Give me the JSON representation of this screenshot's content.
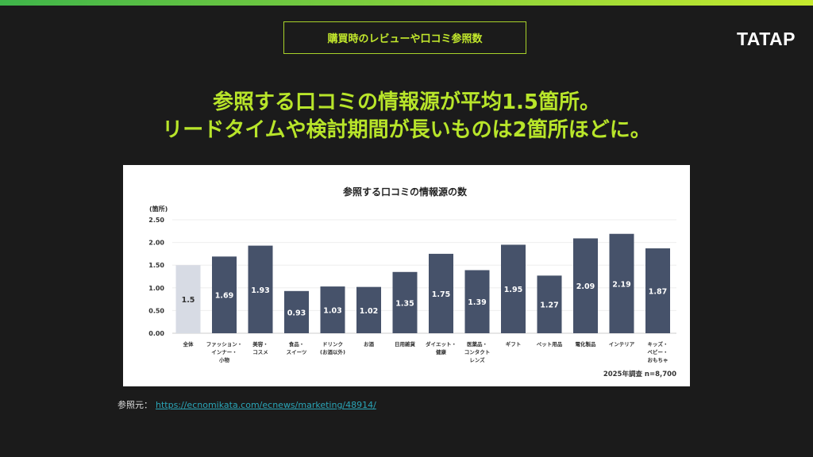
{
  "header": {
    "tag": "購買時のレビューや口コミ参照数",
    "logo": "TATAP"
  },
  "headline": {
    "line1": "参照する口コミの情報源が平均1.5箇所。",
    "line2": "リードタイムや検討期間が長いものは2箇所ほどに。"
  },
  "source": {
    "label": "参照元：",
    "link": "https://ecnomikata.com/ecnews/marketing/48914/"
  },
  "colors": {
    "accent": "#b8e52a",
    "bar": "#46526a",
    "bar_highlight": "#d7dbe4"
  },
  "chart_data": {
    "type": "bar",
    "title": "参照する口コミの情報源の数",
    "ylabel": "(箇所)",
    "xlabel": "",
    "ylim": [
      0,
      2.5
    ],
    "yticks": [
      "0.00",
      "0.50",
      "1.00",
      "1.50",
      "2.00",
      "2.50"
    ],
    "grid": true,
    "note": "2025年調査 n=8,700",
    "categories": [
      [
        "全体"
      ],
      [
        "ファッション・",
        "インナー・",
        "小物"
      ],
      [
        "美容・",
        "コスメ"
      ],
      [
        "食品・",
        "スイーツ"
      ],
      [
        "ドリンク",
        "(お酒以外)"
      ],
      [
        "お酒"
      ],
      [
        "日用雑貨"
      ],
      [
        "ダイエット・",
        "健康"
      ],
      [
        "医薬品・",
        "コンタクト",
        "レンズ"
      ],
      [
        "ギフト"
      ],
      [
        "ペット用品"
      ],
      [
        "電化製品"
      ],
      [
        "インテリア"
      ],
      [
        "キッズ・",
        "ベビー・",
        "おもちゃ"
      ]
    ],
    "values": [
      1.5,
      1.69,
      1.93,
      0.93,
      1.03,
      1.02,
      1.35,
      1.75,
      1.39,
      1.95,
      1.27,
      2.09,
      2.19,
      1.87
    ],
    "value_labels": [
      "1.5",
      "1.69",
      "1.93",
      "0.93",
      "1.03",
      "1.02",
      "1.35",
      "1.75",
      "1.39",
      "1.95",
      "1.27",
      "2.09",
      "2.19",
      "1.87"
    ]
  }
}
